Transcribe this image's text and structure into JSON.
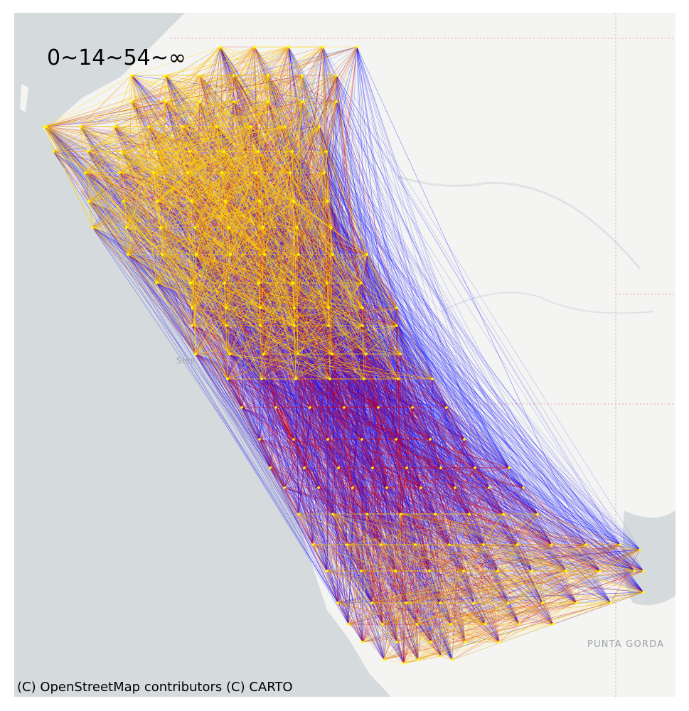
{
  "map": {
    "range_label": "0~14~54~∞",
    "attribution": "(C) OpenStreetMap contributors (C) CARTO",
    "place_labels": {
      "siesta": "Sies",
      "punta_gorda": "PUNTA GORDA"
    },
    "colors": {
      "water": "#d5dadc",
      "land": "#f4f4f2",
      "border": "#e3a3a3",
      "flow_long": "#0000ff",
      "flow_mid": "#e00000",
      "flow_short": "#ffd400",
      "node": "#ffff00"
    },
    "legend_classes": [
      "0~14",
      "14~54",
      "54~∞"
    ],
    "basemap": "CARTO light"
  }
}
